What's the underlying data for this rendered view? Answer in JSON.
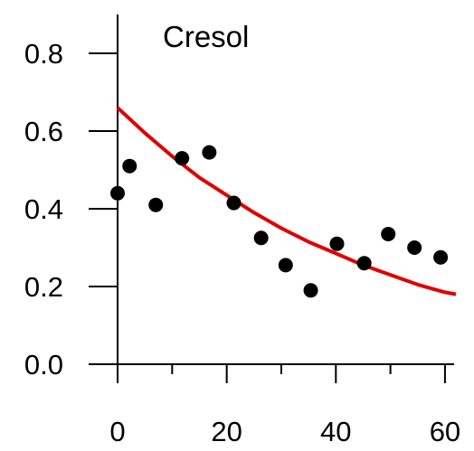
{
  "chart_data": {
    "type": "scatter",
    "title": "Cresol",
    "xlabel": "",
    "ylabel": "",
    "xlim": [
      0,
      62
    ],
    "ylim": [
      0,
      0.9
    ],
    "x_ticks": [
      0,
      20,
      40,
      60
    ],
    "x_tick_labels": [
      "0",
      "20",
      "40",
      "60"
    ],
    "x_minor_ticks": [
      10,
      30,
      50
    ],
    "y_ticks": [
      0.0,
      0.2,
      0.4,
      0.6,
      0.8
    ],
    "y_tick_labels": [
      "0.0",
      "0.2",
      "0.4",
      "0.6",
      "0.8"
    ],
    "grid": false,
    "series": [
      {
        "kind": "points",
        "color": "#000000",
        "x": [
          0,
          2.2,
          7,
          11.8,
          16.8,
          21.3,
          26.3,
          30.8,
          35.4,
          40.2,
          45.2,
          49.6,
          54.4,
          59.2
        ],
        "y": [
          0.44,
          0.51,
          0.41,
          0.53,
          0.545,
          0.415,
          0.325,
          0.255,
          0.19,
          0.31,
          0.26,
          0.335,
          0.3,
          0.275
        ]
      },
      {
        "kind": "fit-curve",
        "color": "#e00000",
        "x": [
          0,
          5,
          10,
          15,
          20,
          25,
          30,
          35,
          40,
          45,
          50,
          55,
          60,
          62
        ],
        "y": [
          0.66,
          0.595,
          0.535,
          0.48,
          0.435,
          0.39,
          0.35,
          0.315,
          0.285,
          0.255,
          0.23,
          0.205,
          0.185,
          0.18
        ]
      }
    ]
  }
}
